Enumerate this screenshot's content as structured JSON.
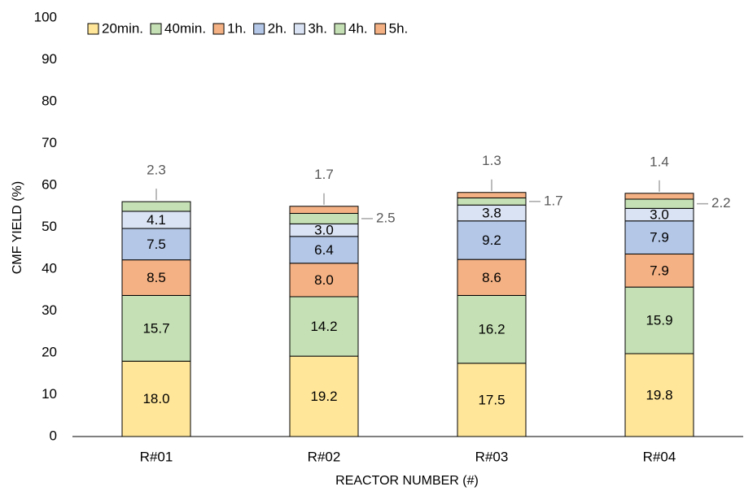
{
  "chart_data": {
    "type": "stacked_bar",
    "xlabel": "REACTOR NUMBER (#)",
    "ylabel": "CMF YIELD (%)",
    "categories": [
      "R#01",
      "R#02",
      "R#03",
      "R#04"
    ],
    "ylim": [
      0,
      100
    ],
    "yticks": [
      0,
      10,
      20,
      30,
      40,
      50,
      60,
      70,
      80,
      90,
      100
    ],
    "grid": false,
    "legend": "top-left",
    "series": [
      {
        "name": "20min.",
        "color": "#ffe699",
        "values": [
          18.0,
          19.2,
          17.5,
          19.8
        ],
        "value_labels": [
          "18.0",
          "19.2",
          "17.5",
          "19.8"
        ]
      },
      {
        "name": "40min.",
        "color": "#c5e0b4",
        "values": [
          15.7,
          14.2,
          16.2,
          15.9
        ],
        "value_labels": [
          "15.7",
          "14.2",
          "16.2",
          "15.9"
        ]
      },
      {
        "name": "1h.",
        "color": "#f4b183",
        "values": [
          8.5,
          8.0,
          8.6,
          7.9
        ],
        "value_labels": [
          "8.5",
          "8.0",
          "8.6",
          "7.9"
        ]
      },
      {
        "name": "2h.",
        "color": "#b4c7e7",
        "values": [
          7.5,
          6.4,
          9.2,
          7.9
        ],
        "value_labels": [
          "7.5",
          "6.4",
          "9.2",
          "7.9"
        ]
      },
      {
        "name": "3h.",
        "color": "#dae3f3",
        "values": [
          4.1,
          3.0,
          3.8,
          3.0
        ],
        "value_labels": [
          "4.1",
          "3.0",
          "3.8",
          "3.0"
        ]
      },
      {
        "name": "4h.",
        "color": "#c5e0b4",
        "values": [
          2.3,
          2.5,
          1.7,
          2.2
        ],
        "value_labels": [
          "2.3",
          "2.5",
          "1.7",
          "2.2"
        ]
      },
      {
        "name": "5h.",
        "color": "#f4b183",
        "values": [
          0,
          1.7,
          1.3,
          1.4
        ],
        "value_labels": [
          null,
          "1.7",
          "1.3",
          "1.4"
        ]
      }
    ]
  }
}
